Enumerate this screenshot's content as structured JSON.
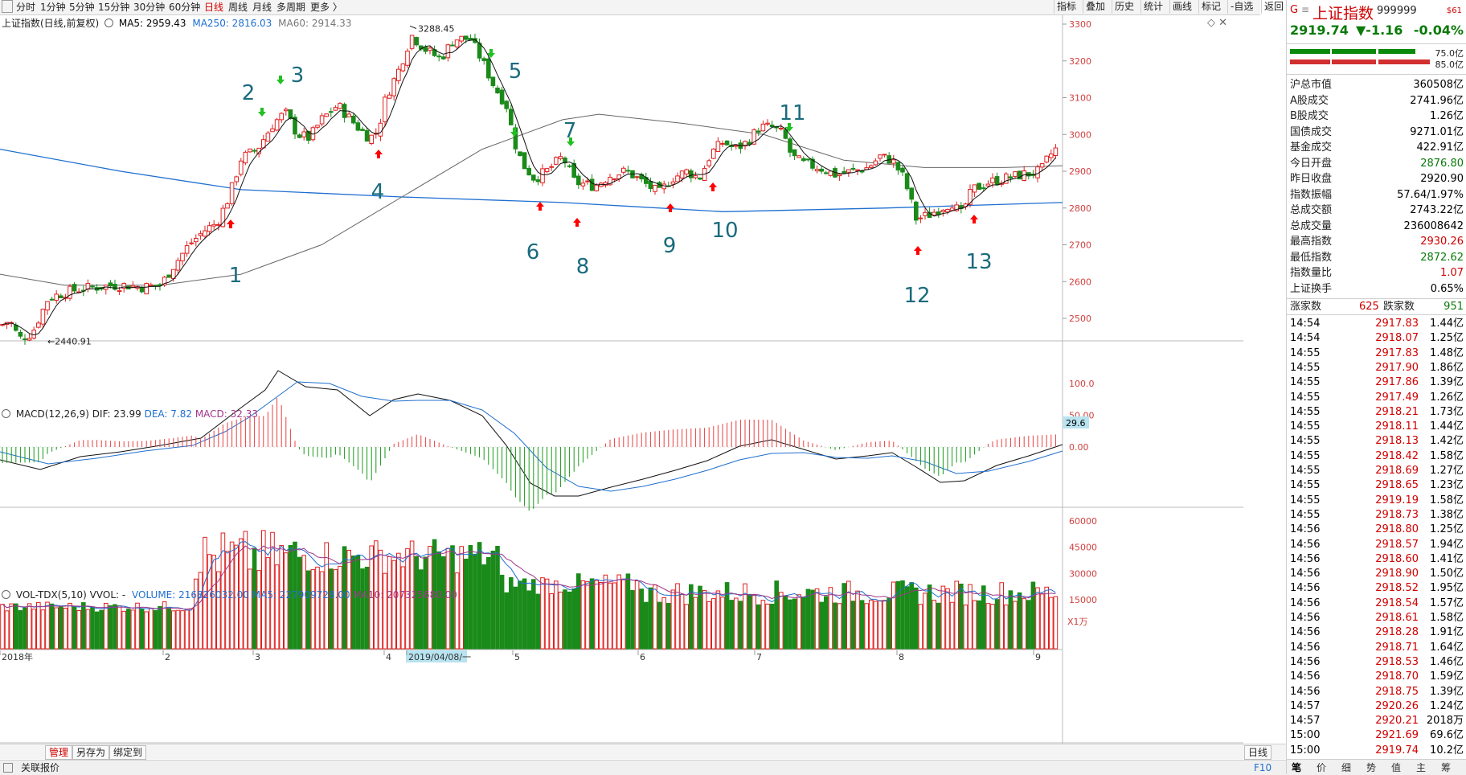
{
  "toolbar": {
    "periods": [
      "分时",
      "1分钟",
      "5分钟",
      "15分钟",
      "30分钟",
      "60分钟",
      "日线",
      "周线",
      "月线",
      "多周期",
      "更多 〉"
    ],
    "active_period": "日线",
    "right_buttons": [
      "指标",
      "叠加",
      "历史",
      "统计",
      "画线",
      "标记",
      "-自选",
      "返回"
    ]
  },
  "chart_info": {
    "title": "上证指数(日线,前复权)",
    "ma5": "MA5: 2959.43",
    "ma250": "MA250: 2816.03",
    "ma60": "MA60: 2914.33",
    "max_label": "3288.45",
    "min_label": "2440.91"
  },
  "price_axis": [
    "3300",
    "3200",
    "3100",
    "3000",
    "2900",
    "2800",
    "2700",
    "2600",
    "2500"
  ],
  "annotations": [
    "1",
    "2",
    "3",
    "4",
    "5",
    "6",
    "7",
    "8",
    "9",
    "10",
    "11",
    "12",
    "13"
  ],
  "macd": {
    "title": "MACD(12,26,9)",
    "dif": "DIF: 23.99",
    "dea": "DEA: 7.82",
    "macd": "MACD: 32.33",
    "axis": [
      "100.0",
      "50.00",
      "0.00"
    ],
    "current": "29.6"
  },
  "vol": {
    "title": "VOL-TDX(5,10) VVOL: -",
    "volume": "VOLUME: 216826032.00",
    "ma5": "MA5: 227909728.00",
    "ma10": "MA10: 207325680.00",
    "axis": [
      "60000",
      "45000",
      "30000",
      "15000"
    ],
    "unit": "X1万"
  },
  "date_axis": [
    "2018年",
    "2",
    "3",
    "4",
    "2019/04/08/一",
    "5",
    "6",
    "7",
    "8",
    "9"
  ],
  "bottom_left": {
    "tabs": [
      "管理",
      "另存为",
      "绑定到"
    ],
    "right_tabs": [
      "日线",
      "+",
      "-"
    ],
    "quote_label": "关联报价",
    "f10": "F10"
  },
  "quote": {
    "name": "上证指数",
    "code": "999999",
    "tag": "$61",
    "price": "2919.74",
    "change": "▼-1.16",
    "pct": "-0.04%",
    "buy_amt": "75.0亿",
    "sell_amt": "85.0亿"
  },
  "stats": [
    {
      "k": "沪总市值",
      "v": "360508亿",
      "c": "#000"
    },
    {
      "k": "A股成交",
      "v": "2741.96亿",
      "c": "#000"
    },
    {
      "k": "B股成交",
      "v": "1.26亿",
      "c": "#000"
    },
    {
      "k": "国债成交",
      "v": "9271.01亿",
      "c": "#000"
    },
    {
      "k": "基金成交",
      "v": "422.91亿",
      "c": "#000"
    },
    {
      "k": "今日开盘",
      "v": "2876.80",
      "c": "#0a7a0a"
    },
    {
      "k": "昨日收盘",
      "v": "2920.90",
      "c": "#000"
    },
    {
      "k": "指数振幅",
      "v": "57.64/1.97%",
      "c": "#000"
    },
    {
      "k": "总成交额",
      "v": "2743.22亿",
      "c": "#000"
    },
    {
      "k": "总成交量",
      "v": "236008642",
      "c": "#000"
    },
    {
      "k": "最高指数",
      "v": "2930.26",
      "c": "#d00000"
    },
    {
      "k": "最低指数",
      "v": "2872.62",
      "c": "#0a7a0a"
    },
    {
      "k": "指数量比",
      "v": "1.07",
      "c": "#d00000"
    },
    {
      "k": "上证换手",
      "v": "0.65%",
      "c": "#000"
    }
  ],
  "updown": {
    "up_label": "涨家数",
    "up": "625",
    "down_label": "跌家数",
    "down": "951"
  },
  "ticks": [
    [
      "14:54",
      "2917.83",
      "1.44亿"
    ],
    [
      "14:54",
      "2918.07",
      "1.25亿"
    ],
    [
      "14:55",
      "2917.83",
      "1.48亿"
    ],
    [
      "14:55",
      "2917.90",
      "1.86亿"
    ],
    [
      "14:55",
      "2917.86",
      "1.39亿"
    ],
    [
      "14:55",
      "2917.49",
      "1.26亿"
    ],
    [
      "14:55",
      "2918.21",
      "1.73亿"
    ],
    [
      "14:55",
      "2918.11",
      "1.44亿"
    ],
    [
      "14:55",
      "2918.13",
      "1.42亿"
    ],
    [
      "14:55",
      "2918.42",
      "1.58亿"
    ],
    [
      "14:55",
      "2918.69",
      "1.27亿"
    ],
    [
      "14:55",
      "2918.65",
      "1.23亿"
    ],
    [
      "14:55",
      "2919.19",
      "1.58亿"
    ],
    [
      "14:55",
      "2918.73",
      "1.38亿"
    ],
    [
      "14:56",
      "2918.80",
      "1.25亿"
    ],
    [
      "14:56",
      "2918.57",
      "1.94亿"
    ],
    [
      "14:56",
      "2918.60",
      "1.41亿"
    ],
    [
      "14:56",
      "2918.90",
      "1.50亿"
    ],
    [
      "14:56",
      "2918.52",
      "1.95亿"
    ],
    [
      "14:56",
      "2918.54",
      "1.57亿"
    ],
    [
      "14:56",
      "2918.61",
      "1.58亿"
    ],
    [
      "14:56",
      "2918.28",
      "1.91亿"
    ],
    [
      "14:56",
      "2918.71",
      "1.64亿"
    ],
    [
      "14:56",
      "2918.53",
      "1.46亿"
    ],
    [
      "14:56",
      "2918.70",
      "1.59亿"
    ],
    [
      "14:56",
      "2918.75",
      "1.39亿"
    ],
    [
      "14:57",
      "2920.26",
      "1.24亿"
    ],
    [
      "14:57",
      "2920.21",
      "2018万"
    ],
    [
      "15:00",
      "2921.69",
      "69.6亿"
    ],
    [
      "15:00",
      "2919.74",
      "10.2亿"
    ]
  ],
  "bottom_tabs": [
    "笔",
    "价",
    "细",
    "势",
    "值",
    "主",
    "筹"
  ]
}
